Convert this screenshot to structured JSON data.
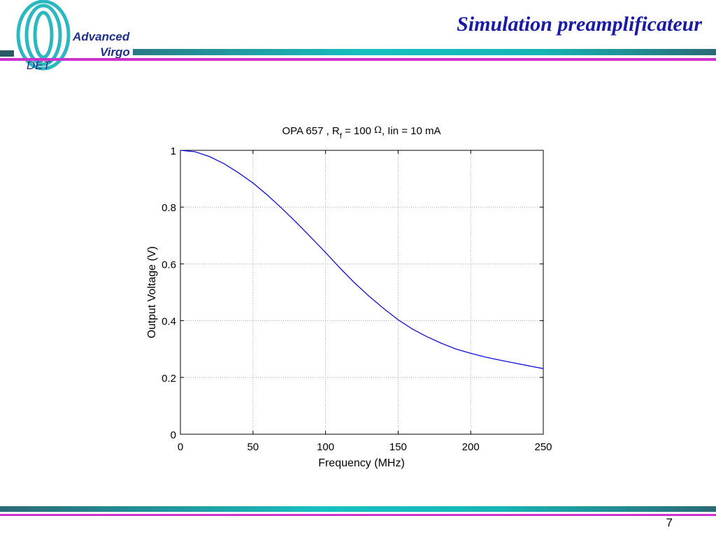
{
  "slide": {
    "title": "Simulation preamplificateur",
    "page_number": "7"
  },
  "logo": {
    "line1": "Advanced",
    "line2": "Virgo",
    "tag": "DET"
  },
  "colors": {
    "title": "#1a1aa6",
    "bar_teal": "#17b5b5",
    "bar_dark": "#2a5a66",
    "bar_magenta": "#cc33cc",
    "curve": "#1010dd",
    "logo_ring": "#2bb8c0",
    "logo_text": "#1f2f8a"
  },
  "chart_data": {
    "type": "line",
    "title_parts": {
      "main": "OPA 657 , R",
      "sub": "f",
      "rest": " = 100 ",
      "omega": "Ω",
      "tail": ", Iin = 10 mA"
    },
    "xlabel": "Frequency (MHz)",
    "ylabel": "Output Voltage (V)",
    "xlim": [
      0,
      250
    ],
    "ylim": [
      0,
      1
    ],
    "xticks": [
      "0",
      "50",
      "100",
      "150",
      "200",
      "250"
    ],
    "xtick_values": [
      0,
      50,
      100,
      150,
      200,
      250
    ],
    "yticks": [
      "0",
      "0.2",
      "0.4",
      "0.6",
      "0.8",
      "1"
    ],
    "ytick_values": [
      0,
      0.2,
      0.4,
      0.6,
      0.8,
      1
    ],
    "grid": true,
    "series": [
      {
        "x": [
          0,
          10,
          20,
          30,
          40,
          50,
          60,
          70,
          80,
          90,
          100,
          110,
          120,
          130,
          140,
          150,
          160,
          170,
          180,
          190,
          200,
          210,
          220,
          230,
          240,
          250
        ],
        "y": [
          1.0,
          0.995,
          0.978,
          0.953,
          0.921,
          0.885,
          0.842,
          0.795,
          0.745,
          0.693,
          0.64,
          0.585,
          0.533,
          0.486,
          0.443,
          0.403,
          0.37,
          0.343,
          0.32,
          0.3,
          0.285,
          0.272,
          0.261,
          0.251,
          0.241,
          0.231
        ]
      }
    ]
  }
}
